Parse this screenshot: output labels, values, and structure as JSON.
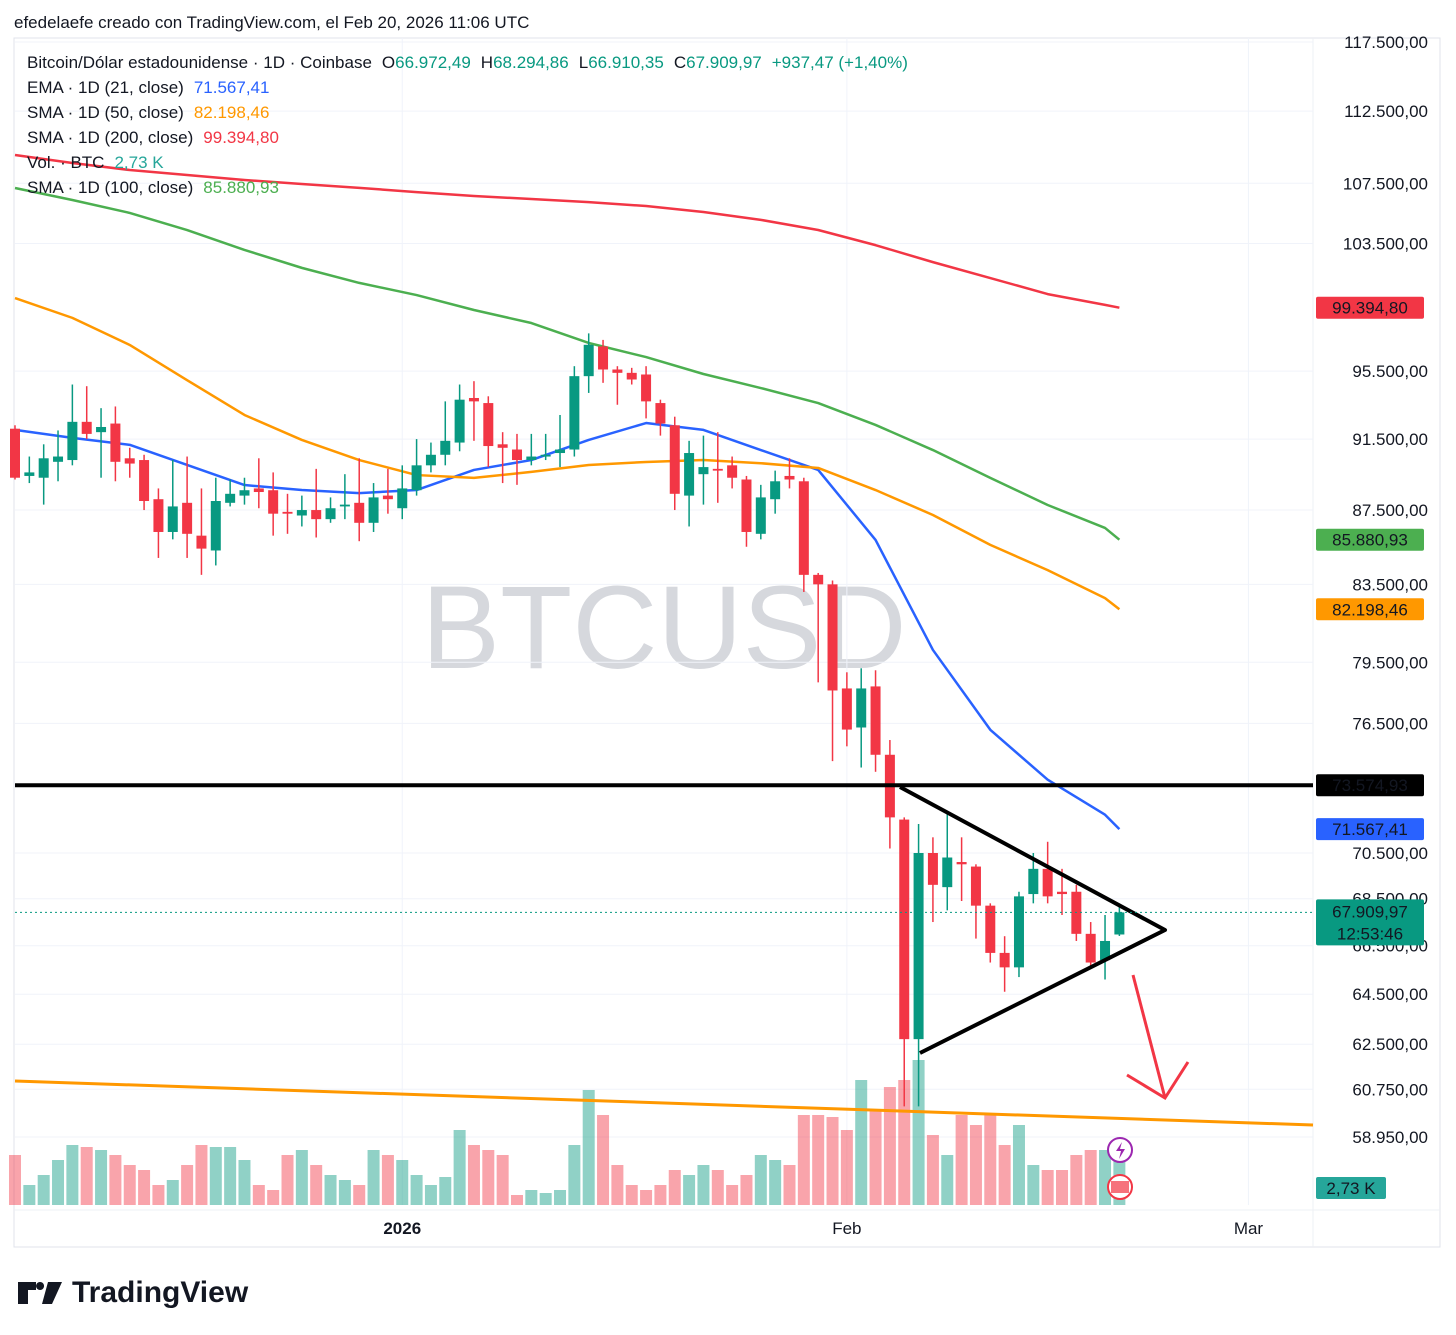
{
  "credit": "efedelaefe creado con TradingView.com, el Feb 20, 2026 11:06 UTC",
  "footer": {
    "brand": "TradingView"
  },
  "chart_data": {
    "type": "candlestick",
    "title": "Bitcoin/Dólar estadounidense · 1D · Coinbase",
    "watermark": "BTCUSD",
    "ohlc_legend": [
      {
        "key": "O",
        "label": "66.972,49"
      },
      {
        "key": "H",
        "label": "68.294,86"
      },
      {
        "key": "L",
        "label": "66.910,35"
      },
      {
        "key": "C",
        "label": "67.909,97"
      }
    ],
    "change_label": "+937,47 (+1,40%)",
    "xlim": [
      0,
      90.5
    ],
    "xticks": [
      {
        "value": 27,
        "label": "2026"
      },
      {
        "value": 58,
        "label": "Feb"
      },
      {
        "value": 86,
        "label": "Mar"
      }
    ],
    "ylim": [
      56480,
      117800
    ],
    "log_scale": true,
    "grid": true,
    "yticks": [
      {
        "value": 117500,
        "label": "117.500,00"
      },
      {
        "value": 112500,
        "label": "112.500,00"
      },
      {
        "value": 107500,
        "label": "107.500,00"
      },
      {
        "value": 103500,
        "label": "103.500,00"
      },
      {
        "value": 95500,
        "label": "95.500,00"
      },
      {
        "value": 91500,
        "label": "91.500,00"
      },
      {
        "value": 87500,
        "label": "87.500,00"
      },
      {
        "value": 83500,
        "label": "83.500,00"
      },
      {
        "value": 79500,
        "label": "79.500,00"
      },
      {
        "value": 76500,
        "label": "76.500,00"
      },
      {
        "value": 70500,
        "label": "70.500,00"
      },
      {
        "value": 68500,
        "label": "68.500,00"
      },
      {
        "value": 66500,
        "label": "66.500,00"
      },
      {
        "value": 64500,
        "label": "64.500,00"
      },
      {
        "value": 62500,
        "label": "62.500,00"
      },
      {
        "value": 60750,
        "label": "60.750,00"
      },
      {
        "value": 58950,
        "label": "58.950,00"
      }
    ],
    "up_color": "#089981",
    "down_color": "#f23645",
    "open": [
      92100,
      89400,
      89300,
      90200,
      90300,
      92500,
      91900,
      92400,
      90400,
      90300,
      88100,
      86300,
      87900,
      86100,
      85300,
      87900,
      88300,
      88700,
      88600,
      87400,
      87200,
      87500,
      87000,
      87700,
      87900,
      86800,
      88300,
      87600,
      88600,
      90000,
      90600,
      91300,
      93900,
      93600,
      91200,
      90900,
      90300,
      90500,
      90700,
      90900,
      95200,
      97000,
      95600,
      95400,
      95300,
      93600,
      92300,
      88300,
      89500,
      89800,
      90000,
      89200,
      86200,
      88100,
      89400,
      89100,
      84000,
      83500,
      78200,
      76300,
      78300,
      75000,
      72000,
      62700,
      70500,
      69000,
      70100,
      69900,
      68200,
      66200,
      65600,
      68700,
      69800,
      68800,
      68800,
      67000,
      65900,
      66972.49
    ],
    "high": [
      92300,
      90500,
      91200,
      92000,
      94700,
      94600,
      93300,
      93400,
      91000,
      90600,
      88700,
      90300,
      90500,
      88700,
      89300,
      89200,
      89300,
      90400,
      89600,
      88400,
      88300,
      89800,
      88200,
      89500,
      90400,
      89000,
      89800,
      90000,
      91500,
      91300,
      93700,
      94700,
      94900,
      94000,
      91900,
      91800,
      91800,
      91800,
      92900,
      95800,
      97800,
      97400,
      95800,
      95700,
      95800,
      93800,
      92800,
      91400,
      91700,
      91900,
      90500,
      89400,
      88900,
      89700,
      90400,
      89300,
      84100,
      83700,
      79000,
      79200,
      79100,
      75700,
      72100,
      71800,
      71200,
      72300,
      71200,
      70000,
      68300,
      66900,
      68800,
      70500,
      71000,
      69800,
      69100,
      67500,
      67800,
      68294.86
    ],
    "low": [
      89200,
      89000,
      87800,
      89100,
      90000,
      91500,
      89300,
      89100,
      89300,
      87500,
      84900,
      85900,
      84900,
      84000,
      84500,
      87700,
      87800,
      87600,
      86100,
      86200,
      86600,
      86000,
      86800,
      87000,
      85800,
      86300,
      87300,
      87000,
      88300,
      89600,
      90000,
      90800,
      91400,
      89900,
      89000,
      88900,
      90000,
      90300,
      89900,
      90500,
      94200,
      94800,
      93500,
      94700,
      92700,
      91700,
      87500,
      86600,
      87800,
      87900,
      88700,
      85500,
      85900,
      87300,
      88700,
      83100,
      78500,
      74700,
      75400,
      74400,
      74200,
      70700,
      60100,
      60100,
      67500,
      68000,
      68400,
      66800,
      65800,
      64600,
      65200,
      68300,
      68300,
      67800,
      66700,
      65600,
      65100,
      66910.35
    ],
    "close": [
      89300,
      89600,
      90400,
      90500,
      92500,
      91800,
      92200,
      90200,
      90100,
      88000,
      86300,
      87700,
      86200,
      85400,
      88000,
      88400,
      88600,
      88500,
      87300,
      87300,
      87500,
      87000,
      87600,
      87800,
      86800,
      88200,
      88100,
      88700,
      90000,
      90600,
      91400,
      93800,
      93700,
      91100,
      91000,
      90300,
      90500,
      90600,
      90900,
      95200,
      97100,
      95600,
      95400,
      95000,
      93700,
      92400,
      88400,
      90700,
      89900,
      89700,
      89300,
      86300,
      88200,
      89100,
      89200,
      84000,
      83500,
      78100,
      76200,
      78200,
      75000,
      72100,
      62700,
      70500,
      69100,
      70300,
      70000,
      68200,
      66200,
      65600,
      68600,
      69800,
      68600,
      68700,
      67000,
      65800,
      66700,
      67909.97
    ],
    "last_price": {
      "label": "67.909,97",
      "countdown": "12:53:46"
    },
    "volume": {
      "name": "Vol. · BTC",
      "label": "2,73 K",
      "color": "#26a69a",
      "values": [
        2.5,
        1,
        1.5,
        2.25,
        3,
        2.9,
        2.75,
        2.5,
        2,
        1.75,
        1,
        1.25,
        2,
        3,
        2.9,
        2.9,
        2.25,
        1,
        0.75,
        2.5,
        2.75,
        2,
        1.5,
        1.25,
        1,
        2.75,
        2.5,
        2.25,
        1.5,
        1,
        1.4,
        3.75,
        3,
        2.75,
        2.5,
        0.5,
        0.75,
        0.6,
        0.75,
        3,
        5.75,
        4.5,
        2,
        1,
        0.75,
        1,
        1.75,
        1.5,
        2,
        1.75,
        1,
        1.5,
        2.5,
        2.25,
        2,
        4.5,
        4.5,
        4.4,
        3.75,
        6.25,
        4.75,
        5.9,
        6.25,
        7.25,
        3.5,
        2.5,
        4.5,
        4,
        4.5,
        3,
        4,
        2,
        1.75,
        1.75,
        2.5,
        2.75,
        2.75,
        2.73
      ]
    },
    "series": [
      {
        "name": "EMA · 1D (21, close)",
        "color": "#2962ff",
        "last_label": "71.567,41",
        "x": [
          0,
          4,
          8,
          12,
          16,
          20,
          24,
          28,
          32,
          36,
          40,
          44,
          48,
          52,
          56,
          60,
          64,
          68,
          72,
          76,
          77
        ],
        "values": [
          92030,
          91570,
          91170,
          90020,
          88890,
          88610,
          88440,
          88610,
          89740,
          90300,
          91450,
          92430,
          92030,
          90870,
          89740,
          85870,
          80120,
          76190,
          73830,
          72220,
          71567.41
        ]
      },
      {
        "name": "SMA · 1D (50, close)",
        "color": "#ff9800",
        "last_label": "82.198,46",
        "x": [
          0,
          4,
          8,
          12,
          16,
          20,
          24,
          28,
          32,
          36,
          40,
          44,
          48,
          52,
          56,
          60,
          64,
          68,
          72,
          76,
          77
        ],
        "values": [
          100000,
          98760,
          97090,
          94960,
          92900,
          91450,
          90300,
          89450,
          89290,
          89630,
          90020,
          90190,
          90300,
          90120,
          89850,
          88610,
          87230,
          85600,
          84250,
          82780,
          82198.46
        ]
      },
      {
        "name": "SMA · 1D (200, close)",
        "color": "#f23645",
        "last_label": "99.394,80",
        "x": [
          0,
          4,
          8,
          12,
          16,
          20,
          24,
          28,
          32,
          36,
          40,
          44,
          48,
          52,
          56,
          60,
          64,
          68,
          72,
          76,
          77
        ],
        "values": [
          109430,
          108880,
          108400,
          108060,
          107720,
          107450,
          107190,
          106900,
          106640,
          106440,
          106230,
          105970,
          105570,
          105050,
          104380,
          103390,
          102290,
          101270,
          100250,
          99570,
          99394.8
        ]
      },
      {
        "name": "SMA · 1D (100, close)",
        "color": "#4caf50",
        "last_label": "85.880,93",
        "x": [
          0,
          4,
          8,
          12,
          16,
          20,
          24,
          28,
          32,
          36,
          40,
          44,
          48,
          52,
          56,
          60,
          64,
          68,
          72,
          76,
          77
        ],
        "values": [
          107180,
          106370,
          105510,
          104380,
          103080,
          101920,
          100960,
          100190,
          99250,
          98440,
          97210,
          96350,
          95330,
          94490,
          93600,
          92320,
          90870,
          89290,
          87780,
          86520,
          85880.93
        ]
      }
    ],
    "price_line": {
      "value": 73574.93,
      "label": "73.574,93",
      "color": "#000000"
    }
  }
}
